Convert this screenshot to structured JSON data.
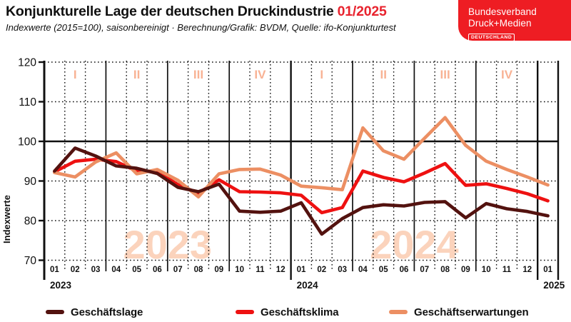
{
  "header": {
    "title": "Konjunkturelle Lage der deutschen Druckindustrie",
    "issue": "01/2025",
    "subtitle": "Indexwerte (2015=100), saisonbereinigt · Berechnung/Grafik: BVDM, Quelle: ifo-Konjunkturtest",
    "accent_color": "#E8232E"
  },
  "logo": {
    "line1": "Bundesverband",
    "line2": "Druck+Medien",
    "badge": "DEUTSCHLAND",
    "bg_color": "#EE1D23"
  },
  "chart_data": {
    "type": "line",
    "title": "Konjunkturelle Lage der deutschen Druckindustrie 01/2025",
    "ylabel": "Indexwerte",
    "ylim": [
      70,
      120
    ],
    "yticks": [
      120,
      110,
      100,
      90,
      80,
      70
    ],
    "grid": "dotted monthly/10-unit grid, solid emphasis line at 100, solid quarter and year separators",
    "legend_position": "bottom",
    "months": [
      "01",
      "02",
      "03",
      "04",
      "05",
      "06",
      "07",
      "08",
      "09",
      "10",
      "11",
      "12",
      "01",
      "02",
      "03",
      "04",
      "05",
      "06",
      "07",
      "08",
      "09",
      "10",
      "11",
      "12",
      "01"
    ],
    "years": [
      {
        "label": "2023",
        "start_month_index": 0
      },
      {
        "label": "2024",
        "start_month_index": 12
      },
      {
        "label": "2025",
        "start_month_index": 24
      }
    ],
    "quarter_labels": [
      "I",
      "II",
      "III",
      "IV",
      "I",
      "II",
      "III",
      "IV"
    ],
    "quarter_label_color": "#F8B294",
    "watermarks": [
      "2023",
      "2024"
    ],
    "watermark_color": "#FBD3BC",
    "series": [
      {
        "name": "Geschäftslage",
        "color": "#53120F",
        "values": [
          92.5,
          98.3,
          96.3,
          93.8,
          93.2,
          91.9,
          88.4,
          87.3,
          89.2,
          82.4,
          82.1,
          82.4,
          84.5,
          76.6,
          80.5,
          83.3,
          84.0,
          83.7,
          84.6,
          84.8,
          80.7,
          84.3,
          83.0,
          82.3,
          81.2
        ]
      },
      {
        "name": "Geschäftsklima",
        "color": "#EE1111",
        "values": [
          92.3,
          95.0,
          95.5,
          94.9,
          92.5,
          92.3,
          89.1,
          86.9,
          90.3,
          87.3,
          87.2,
          87.0,
          86.4,
          82.0,
          83.3,
          92.5,
          90.9,
          89.8,
          92.0,
          94.4,
          88.9,
          89.3,
          88.1,
          86.8,
          85.0
        ]
      },
      {
        "name": "Geschäftserwartungen",
        "color": "#EC8F63",
        "values": [
          92.1,
          91.0,
          94.8,
          97.1,
          91.8,
          92.9,
          90.2,
          86.0,
          91.8,
          92.9,
          93.0,
          91.5,
          88.7,
          88.3,
          87.8,
          103.4,
          97.6,
          95.5,
          100.8,
          106.0,
          99.0,
          95.0,
          92.9,
          91.0,
          89.0
        ]
      }
    ]
  }
}
